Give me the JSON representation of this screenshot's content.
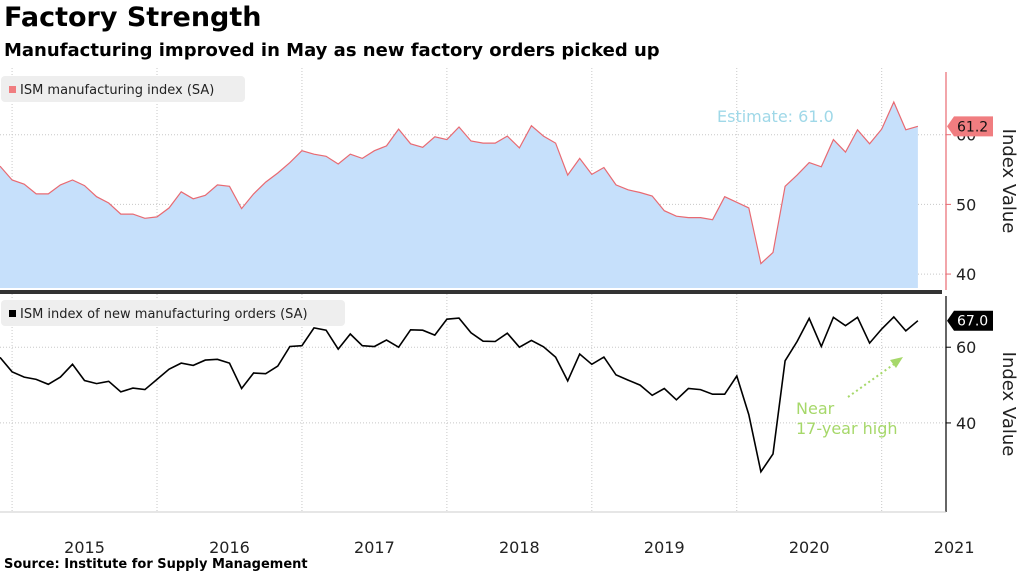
{
  "title": "Factory Strength",
  "subtitle": "Manufacturing improved in May as new factory orders picked up",
  "source": "Source: Institute for Supply Management",
  "colors": {
    "panel_bg": "#ffffff",
    "grid": "#c8c8c8",
    "ism_line": "#e86a72",
    "ism_fill": "#c6e0fb",
    "orders_line": "#000000",
    "estimate_text": "#9fd8e8",
    "annotation_text": "#a6d86a",
    "separator": "#333333",
    "marker_ism": "#f07d80",
    "marker_orders": "#000000"
  },
  "chart_data": {
    "type": "line",
    "x_tick_labels": [
      "2015",
      "2016",
      "2017",
      "2018",
      "2019",
      "2020",
      "2021"
    ],
    "x_tick_years": [
      2015,
      2016,
      2017,
      2018,
      2019,
      2020,
      2021
    ],
    "x_range": [
      "2014-12",
      "2021-05"
    ],
    "panels": [
      {
        "id": "ism",
        "type": "area",
        "legend": "ISM manufacturing index (SA)",
        "ylabel": "Index Value",
        "ylim": [
          38,
          69
        ],
        "yticks": [
          40,
          50,
          60
        ],
        "ytick_labels": [
          "40",
          "50",
          "60"
        ],
        "last_value_label": "61.2",
        "annotation": "Estimate: 61.0",
        "series": {
          "name": "ISM manufacturing index (SA)",
          "start": "2014-12",
          "values": [
            55.5,
            53.5,
            52.9,
            51.5,
            51.5,
            52.8,
            53.5,
            52.7,
            51.1,
            50.2,
            48.6,
            48.6,
            48.0,
            48.2,
            49.5,
            51.8,
            50.8,
            51.3,
            52.8,
            52.6,
            49.4,
            51.5,
            53.2,
            54.5,
            56.0,
            57.7,
            57.2,
            56.9,
            55.8,
            57.2,
            56.6,
            57.7,
            58.4,
            60.8,
            58.7,
            58.2,
            59.7,
            59.3,
            61.1,
            59.1,
            58.8,
            58.8,
            59.8,
            58.1,
            61.3,
            59.8,
            58.8,
            54.2,
            56.6,
            54.3,
            55.3,
            52.8,
            52.1,
            51.7,
            51.2,
            49.1,
            48.3,
            48.1,
            48.1,
            47.8,
            51.1,
            50.3,
            49.5,
            41.5,
            43.1,
            52.6,
            54.2,
            56.0,
            55.4,
            59.3,
            57.5,
            60.7,
            58.7,
            60.8,
            64.7,
            60.7,
            61.2
          ]
        }
      },
      {
        "id": "orders",
        "type": "line",
        "legend": "ISM index of new manufacturing orders (SA)",
        "ylabel": "Index Value",
        "ylim": [
          17,
          73
        ],
        "yticks": [
          40,
          60
        ],
        "ytick_labels": [
          "40",
          "60"
        ],
        "last_value_label": "67.0",
        "annotation_lines": [
          "Near",
          "17-year high"
        ],
        "series": {
          "name": "ISM index of new manufacturing orders (SA)",
          "start": "2014-12",
          "values": [
            57.3,
            53.5,
            52.1,
            51.5,
            50.2,
            52.1,
            55.5,
            51.2,
            50.4,
            51.0,
            48.2,
            49.2,
            48.8,
            51.5,
            54.2,
            55.8,
            55.2,
            56.6,
            56.8,
            55.8,
            49.1,
            53.2,
            53.0,
            55.0,
            60.2,
            60.4,
            65.1,
            64.5,
            59.5,
            63.5,
            60.4,
            60.2,
            61.9,
            60.0,
            64.6,
            64.5,
            63.2,
            67.4,
            67.7,
            63.8,
            61.6,
            61.5,
            63.7,
            60.0,
            61.8,
            60.1,
            57.4,
            51.1,
            58.2,
            55.5,
            57.4,
            52.7,
            51.3,
            50.0,
            47.3,
            49.1,
            46.1,
            49.1,
            48.8,
            47.6,
            47.6,
            52.4,
            42.2,
            27.1,
            31.8,
            56.4,
            61.5,
            67.6,
            60.2,
            67.9,
            65.7,
            67.9,
            61.1,
            64.8,
            68.0,
            64.3,
            67.0
          ]
        }
      }
    ]
  }
}
